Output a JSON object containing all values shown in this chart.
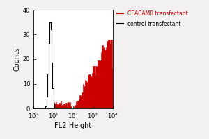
{
  "xlabel": "FL2-Height",
  "ylabel": "Counts",
  "ylim": [
    0,
    40
  ],
  "yticks": [
    0,
    10,
    20,
    30,
    40
  ],
  "xlim": [
    1,
    10000
  ],
  "fig_bg_color": "#f2f0f0",
  "plot_bg_color": "#ffffff",
  "legend_labels": [
    "CEACAM8 transfectant",
    "control transfectant"
  ],
  "legend_colors": [
    "#cc0000",
    "#000000"
  ],
  "ceacam_fill_color": "#cc0000",
  "ceacam_edge_color": "#cc0000",
  "control_fill_color": "#ffffff",
  "control_edge_color": "#000000",
  "control_peak_x": 7.0,
  "control_peak_height": 35,
  "control_sigma_log": 0.08,
  "ceacam_start_log": 1.8,
  "ceacam_peak_x": 9000,
  "ceacam_peak_height": 28
}
